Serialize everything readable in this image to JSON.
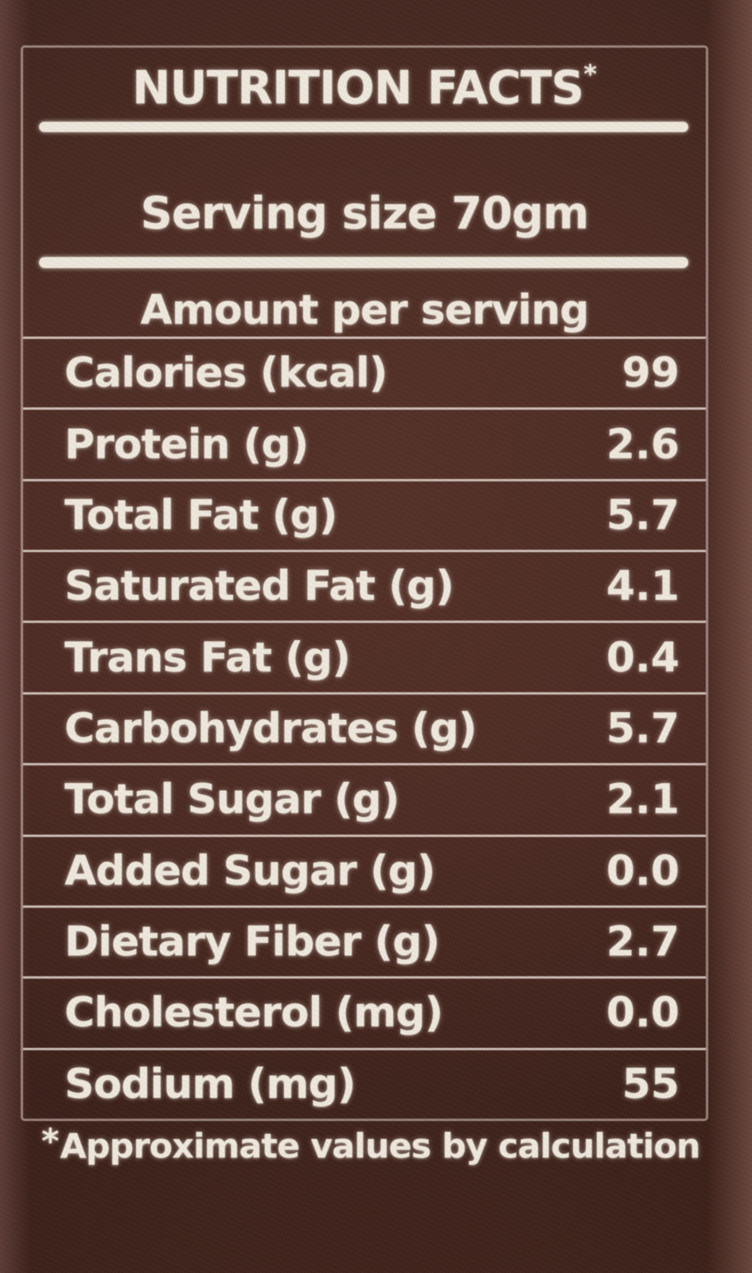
{
  "colors": {
    "background": "#47281f",
    "label_text": "#f0e9de",
    "rule": "#efe8dc"
  },
  "label": {
    "title": "NUTRITION FACTS",
    "title_superscript": "*",
    "serving_size": "Serving size 70gm",
    "amount_per_serving": "Amount per serving",
    "nutrients": [
      {
        "name": "Calories (kcal)",
        "value": "99"
      },
      {
        "name": "Protein (g)",
        "value": "2.6"
      },
      {
        "name": "Total Fat (g)",
        "value": "5.7"
      },
      {
        "name": "Saturated Fat (g)",
        "value": "4.1"
      },
      {
        "name": "Trans Fat (g)",
        "value": "0.4"
      },
      {
        "name": "Carbohydrates (g)",
        "value": "5.7"
      },
      {
        "name": "Total Sugar (g)",
        "value": "2.1"
      },
      {
        "name": "Added Sugar (g)",
        "value": "0.0"
      },
      {
        "name": "Dietary Fiber (g)",
        "value": "2.7"
      },
      {
        "name": "Cholesterol (mg)",
        "value": "0.0"
      },
      {
        "name": "Sodium (mg)",
        "value": "55"
      }
    ],
    "footnote_marker": "*",
    "footnote_text": "Approximate values by calculation"
  }
}
